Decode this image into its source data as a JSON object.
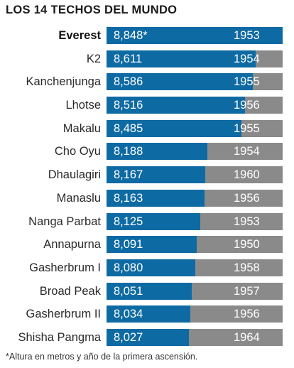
{
  "title": "LOS 14 TECHOS DEL MUNDO",
  "footnote": "*Altura en metros y año de la primera ascensión.",
  "colors": {
    "bar": "#0e6aa3",
    "remainder": "#8a8a8a",
    "text": "#2a2a2a"
  },
  "chart_data": {
    "type": "bar",
    "orientation": "horizontal",
    "title": "LOS 14 TECHOS DEL MUNDO",
    "categories": [
      "Everest",
      "K2",
      "Kanchenjunga",
      "Lhotse",
      "Makalu",
      "Cho Oyu",
      "Dhaulagiri",
      "Manaslu",
      "Nanga Parbat",
      "Annapurna",
      "Gasherbrum I",
      "Broad Peak",
      "Gasherbrum II",
      "Shisha Pangma"
    ],
    "values": [
      8848,
      8611,
      8586,
      8516,
      8485,
      8188,
      8167,
      8163,
      8125,
      8091,
      8080,
      8051,
      8034,
      8027
    ],
    "value_labels": [
      "8,848*",
      "8,611",
      "8,586",
      "8,516",
      "8,485",
      "8,188",
      "8,167",
      "8,163",
      "8,125",
      "8,091",
      "8,080",
      "8,051",
      "8,034",
      "8,027"
    ],
    "years": [
      "1953",
      "1954",
      "1955",
      "1956",
      "1955",
      "1954",
      "1960",
      "1956",
      "1953",
      "1950",
      "1958",
      "1957",
      "1956",
      "1964"
    ],
    "highlight": "Everest",
    "xlim": [
      0,
      8848
    ]
  }
}
